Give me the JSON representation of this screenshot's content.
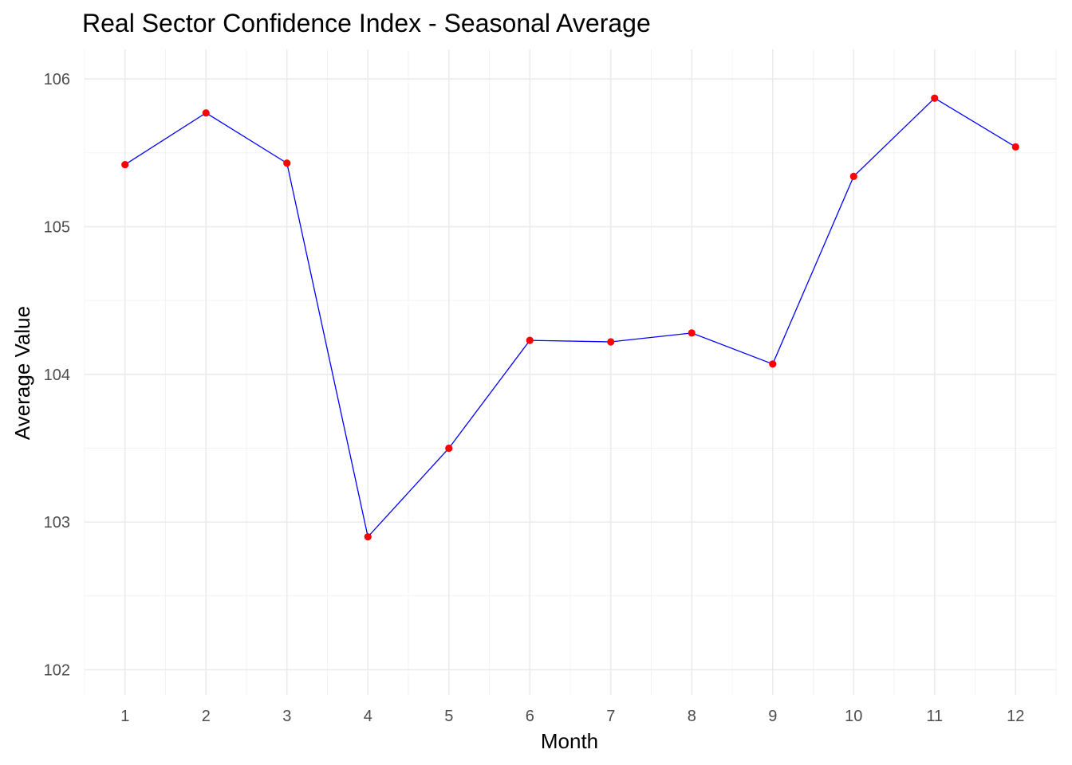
{
  "chart_data": {
    "type": "line",
    "title": "Real Sector Confidence Index - Seasonal Average",
    "xlabel": "Month",
    "ylabel": "Average Value",
    "x": [
      1,
      2,
      3,
      4,
      5,
      6,
      7,
      8,
      9,
      10,
      11,
      12
    ],
    "x_tick_labels": [
      "1",
      "2",
      "3",
      "4",
      "5",
      "6",
      "7",
      "8",
      "9",
      "10",
      "11",
      "12"
    ],
    "y_ticks": [
      102,
      103,
      104,
      105,
      106
    ],
    "y_tick_labels": [
      "102",
      "103",
      "104",
      "105",
      "106"
    ],
    "ylim": [
      101.83,
      106.2
    ],
    "xlim": [
      0.5,
      12.5
    ],
    "grid": true,
    "series": [
      {
        "values": [
          105.42,
          105.77,
          105.43,
          102.9,
          103.5,
          104.23,
          104.22,
          104.28,
          104.07,
          105.34,
          105.87,
          105.54
        ],
        "line_color": "#0000ff",
        "point_color": "#ff0000"
      }
    ]
  }
}
